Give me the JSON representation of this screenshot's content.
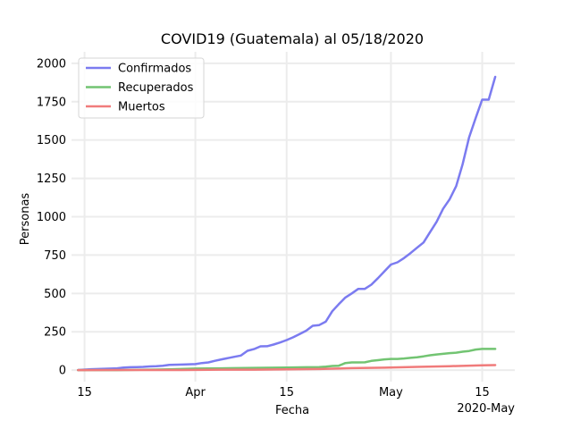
{
  "chart_data": {
    "type": "line",
    "title": "COVID19 (Guatemala) al 05/18/2020",
    "xlabel": "Fecha",
    "ylabel": "Personas",
    "x_axis_year_label": "2020-May",
    "x_range": [
      "2020-03-13",
      "2020-05-20"
    ],
    "ylim": [
      -75,
      2075
    ],
    "y_ticks": [
      0,
      250,
      500,
      750,
      1000,
      1250,
      1500,
      1750,
      2000
    ],
    "y_tick_labels": [
      "0",
      "250",
      "500",
      "750",
      "1000",
      "1250",
      "1500",
      "1750",
      "2000"
    ],
    "x_ticks": [
      {
        "date": "2020-03-15",
        "label": "15"
      },
      {
        "date": "2020-04-01",
        "label": "Apr"
      },
      {
        "date": "2020-04-15",
        "label": "15"
      },
      {
        "date": "2020-05-01",
        "label": "May"
      },
      {
        "date": "2020-05-15",
        "label": "15"
      }
    ],
    "grid": true,
    "legend_position": "top-left",
    "series": [
      {
        "name": "Confirmados",
        "color": "#7b7bf0",
        "points": [
          [
            "2020-03-14",
            1
          ],
          [
            "2020-03-16",
            6
          ],
          [
            "2020-03-18",
            9
          ],
          [
            "2020-03-20",
            12
          ],
          [
            "2020-03-21",
            17
          ],
          [
            "2020-03-22",
            19
          ],
          [
            "2020-03-23",
            20
          ],
          [
            "2020-03-24",
            21
          ],
          [
            "2020-03-25",
            24
          ],
          [
            "2020-03-26",
            25
          ],
          [
            "2020-03-27",
            28
          ],
          [
            "2020-03-28",
            34
          ],
          [
            "2020-03-30",
            36
          ],
          [
            "2020-04-01",
            39
          ],
          [
            "2020-04-02",
            46
          ],
          [
            "2020-04-03",
            50
          ],
          [
            "2020-04-04",
            61
          ],
          [
            "2020-04-05",
            70
          ],
          [
            "2020-04-07",
            87
          ],
          [
            "2020-04-08",
            95
          ],
          [
            "2020-04-09",
            126
          ],
          [
            "2020-04-10",
            137
          ],
          [
            "2020-04-11",
            155
          ],
          [
            "2020-04-12",
            156
          ],
          [
            "2020-04-13",
            167
          ],
          [
            "2020-04-14",
            180
          ],
          [
            "2020-04-15",
            196
          ],
          [
            "2020-04-16",
            214
          ],
          [
            "2020-04-17",
            235
          ],
          [
            "2020-04-18",
            257
          ],
          [
            "2020-04-19",
            289
          ],
          [
            "2020-04-20",
            294
          ],
          [
            "2020-04-21",
            316
          ],
          [
            "2020-04-22",
            384
          ],
          [
            "2020-04-23",
            430
          ],
          [
            "2020-04-24",
            473
          ],
          [
            "2020-04-25",
            500
          ],
          [
            "2020-04-26",
            530
          ],
          [
            "2020-04-27",
            530
          ],
          [
            "2020-04-28",
            557
          ],
          [
            "2020-04-29",
            599
          ],
          [
            "2020-04-30",
            644
          ],
          [
            "2020-05-01",
            688
          ],
          [
            "2020-05-02",
            703
          ],
          [
            "2020-05-03",
            730
          ],
          [
            "2020-05-04",
            763
          ],
          [
            "2020-05-05",
            798
          ],
          [
            "2020-05-06",
            832
          ],
          [
            "2020-05-07",
            900
          ],
          [
            "2020-05-08",
            967
          ],
          [
            "2020-05-09",
            1052
          ],
          [
            "2020-05-10",
            1114
          ],
          [
            "2020-05-11",
            1199
          ],
          [
            "2020-05-12",
            1342
          ],
          [
            "2020-05-13",
            1518
          ],
          [
            "2020-05-14",
            1643
          ],
          [
            "2020-05-15",
            1763
          ],
          [
            "2020-05-16",
            1763
          ],
          [
            "2020-05-17",
            1912
          ]
        ]
      },
      {
        "name": "Recuperados",
        "color": "#72c472",
        "points": [
          [
            "2020-03-14",
            0
          ],
          [
            "2020-03-20",
            0
          ],
          [
            "2020-03-25",
            3
          ],
          [
            "2020-03-28",
            5
          ],
          [
            "2020-04-01",
            10
          ],
          [
            "2020-04-05",
            12
          ],
          [
            "2020-04-10",
            15
          ],
          [
            "2020-04-15",
            17
          ],
          [
            "2020-04-18",
            19
          ],
          [
            "2020-04-20",
            20
          ],
          [
            "2020-04-21",
            23
          ],
          [
            "2020-04-22",
            27
          ],
          [
            "2020-04-23",
            29
          ],
          [
            "2020-04-24",
            46
          ],
          [
            "2020-04-25",
            50
          ],
          [
            "2020-04-26",
            50
          ],
          [
            "2020-04-27",
            51
          ],
          [
            "2020-04-28",
            60
          ],
          [
            "2020-04-29",
            65
          ],
          [
            "2020-04-30",
            70
          ],
          [
            "2020-05-01",
            73
          ],
          [
            "2020-05-02",
            73
          ],
          [
            "2020-05-03",
            76
          ],
          [
            "2020-05-04",
            80
          ],
          [
            "2020-05-05",
            84
          ],
          [
            "2020-05-06",
            90
          ],
          [
            "2020-05-07",
            97
          ],
          [
            "2020-05-08",
            102
          ],
          [
            "2020-05-09",
            106
          ],
          [
            "2020-05-10",
            111
          ],
          [
            "2020-05-11",
            114
          ],
          [
            "2020-05-12",
            120
          ],
          [
            "2020-05-13",
            125
          ],
          [
            "2020-05-14",
            134
          ],
          [
            "2020-05-15",
            138
          ],
          [
            "2020-05-16",
            138
          ],
          [
            "2020-05-17",
            138
          ]
        ]
      },
      {
        "name": "Muertos",
        "color": "#f07b7b",
        "points": [
          [
            "2020-03-14",
            0
          ],
          [
            "2020-03-20",
            1
          ],
          [
            "2020-03-25",
            1
          ],
          [
            "2020-03-30",
            1
          ],
          [
            "2020-04-05",
            3
          ],
          [
            "2020-04-10",
            3
          ],
          [
            "2020-04-15",
            5
          ],
          [
            "2020-04-20",
            7
          ],
          [
            "2020-04-25",
            13
          ],
          [
            "2020-04-30",
            16
          ],
          [
            "2020-05-05",
            21
          ],
          [
            "2020-05-10",
            26
          ],
          [
            "2020-05-15",
            31
          ],
          [
            "2020-05-17",
            33
          ]
        ]
      }
    ]
  }
}
